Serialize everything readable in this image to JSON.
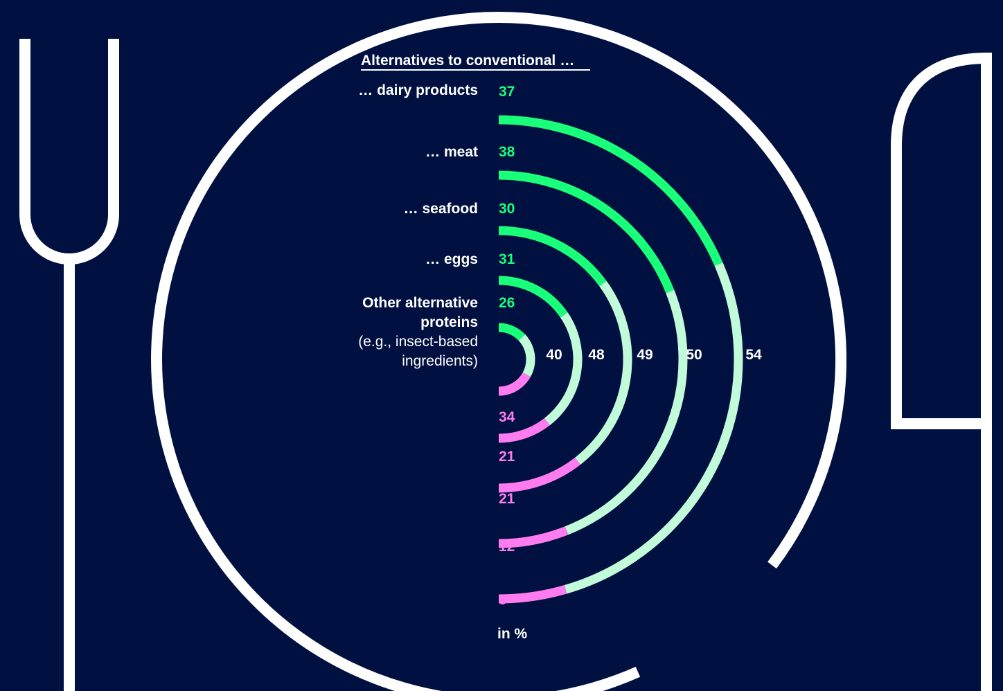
{
  "colors": {
    "background": "#001040",
    "outline": "#ffffff",
    "top_segment": "#1aff7a",
    "middle_segment": "#c2fbd9",
    "bottom_segment": "#ff7bf0",
    "top_text": "#1aff7a",
    "bottom_text": "#ff7bf0",
    "total_text": "#ffffff"
  },
  "chart_data": {
    "type": "radial-bar",
    "title": "Alternatives to conventional …",
    "unit_label": "in %",
    "segment_order": [
      "top",
      "middle",
      "bottom"
    ],
    "series": [
      {
        "name": "… dairy products",
        "top": 37,
        "total": 54,
        "bottom": 9
      },
      {
        "name": "… meat",
        "top": 38,
        "total": 50,
        "bottom": 12
      },
      {
        "name": "… seafood",
        "top": 30,
        "total": 49,
        "bottom": 21
      },
      {
        "name": "… eggs",
        "top": 31,
        "total": 48,
        "bottom": 21
      },
      {
        "name": "Other alternative proteins",
        "note_lines": [
          "(e.g., insect-based",
          "ingredients)"
        ],
        "top": 26,
        "total": 40,
        "bottom": 34
      }
    ]
  },
  "labels": {
    "title_underlined": "Alternatives to conventional",
    "title_suffix": "…",
    "row1": "… dairy products",
    "row2": "… meat",
    "row3": "… seafood",
    "row4": "… eggs",
    "row5_line1": "Other alternative",
    "row5_line2": "proteins",
    "row5_note1": "(e.g., insect-based",
    "row5_note2": "ingredients)",
    "unit": "in %"
  }
}
